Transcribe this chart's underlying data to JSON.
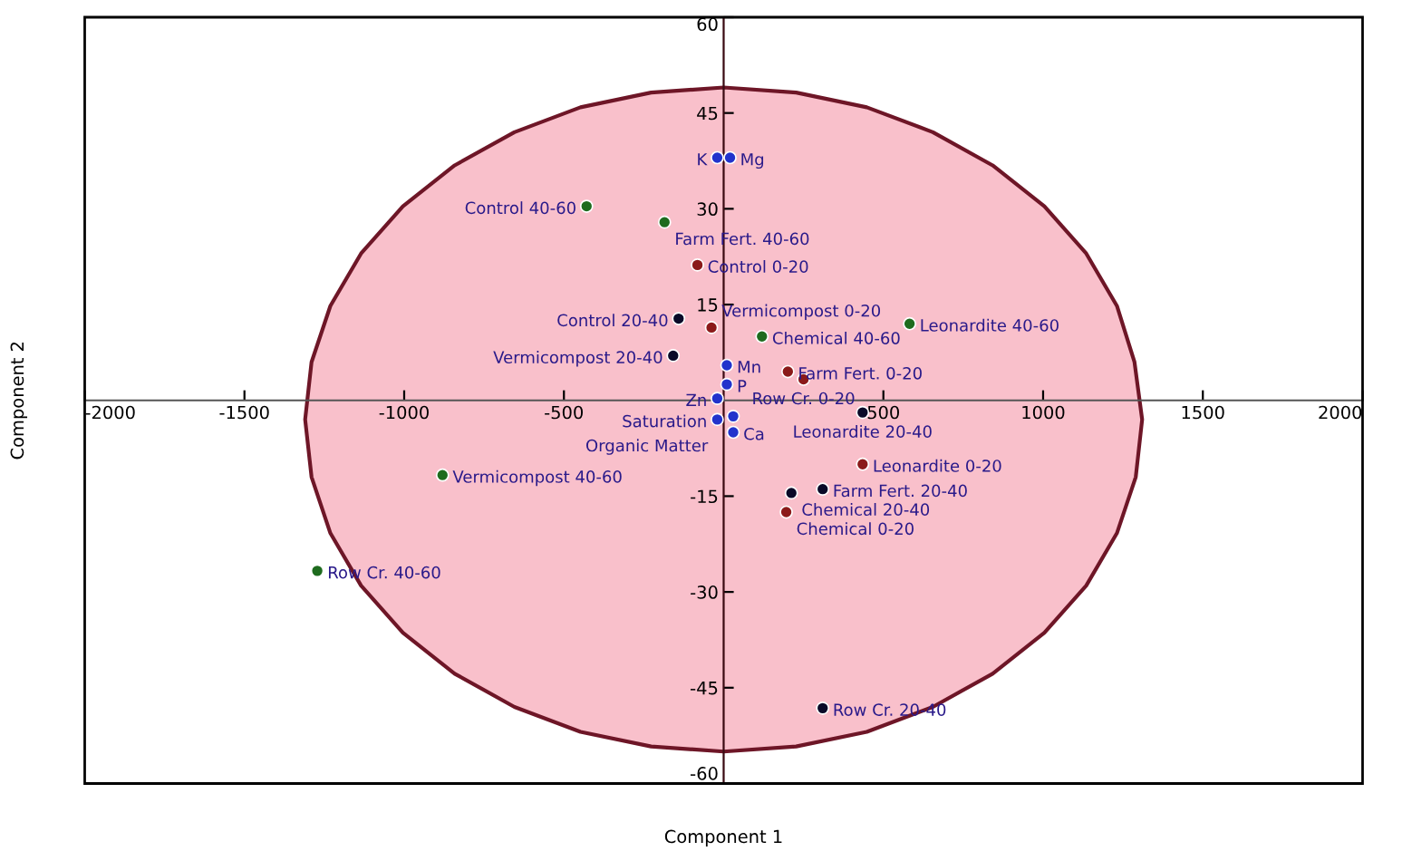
{
  "chart_data": {
    "type": "scatter",
    "xlabel": "Component 1",
    "ylabel": "Component 2",
    "xlim": [
      -2000,
      2000
    ],
    "ylim": [
      -60,
      60
    ],
    "xticks": [
      -2000,
      -1500,
      -1000,
      -500,
      500,
      1000,
      1500,
      2000
    ],
    "yticks": [
      -60,
      -45,
      -30,
      -15,
      15,
      30,
      45,
      60
    ],
    "grid": false,
    "legend": false,
    "series": [
      {
        "type": "area",
        "color": "#f9c0cb",
        "x": [
          1310,
          1286,
          1231,
          1135,
          1004,
          842,
          655,
          448,
          227,
          0,
          -227,
          -448,
          -655,
          -842,
          -1004,
          -1135,
          -1231,
          -1290,
          -1310,
          -1290,
          -1231,
          -1135,
          -1004,
          -842,
          -655,
          -448,
          -227,
          0,
          227,
          448,
          655,
          842,
          1004,
          1135,
          1231,
          1290,
          1310
        ],
        "values": [
          -3,
          6,
          14.8,
          23,
          30.4,
          36.8,
          42,
          45.9,
          48.2,
          49,
          48.2,
          45.9,
          42,
          36.8,
          30.4,
          23,
          14.8,
          6,
          -3,
          -12,
          -20.8,
          -29,
          -36.4,
          -42.8,
          -48,
          -51.9,
          -54.2,
          -55,
          -54.2,
          -51.9,
          -48,
          -42.8,
          -36.4,
          -29,
          -20.8,
          -12,
          -3
        ]
      },
      {
        "marker": "circle",
        "color": "#1e6b1e",
        "x": [
          -429,
          -185,
          120,
          582,
          -880,
          -1272
        ],
        "values": [
          30.4,
          27.9,
          10,
          12,
          -11.7,
          -26.7
        ]
      },
      {
        "marker": "circle",
        "color": "#8b1a1a",
        "x": [
          -82,
          -38,
          201,
          250,
          435,
          196
        ],
        "values": [
          21.2,
          11.4,
          4.5,
          3.3,
          -10,
          -17.5
        ]
      },
      {
        "marker": "circle",
        "color": "#0a0a28",
        "x": [
          -141,
          -158,
          435,
          310,
          212,
          310
        ],
        "values": [
          12.8,
          7,
          -1.9,
          -13.9,
          -14.5,
          -48.2
        ]
      },
      {
        "marker": "circle",
        "color": "#2233cc",
        "x": [
          -20,
          20,
          10,
          10,
          -20,
          -20,
          30,
          30
        ],
        "values": [
          38,
          38,
          5.5,
          2.5,
          0.3,
          -3,
          -2.5,
          -5
        ]
      }
    ],
    "annotations": [
      {
        "text": "Control 40-60",
        "x": -429,
        "y": 30.4
      },
      {
        "text": "Farm Fert. 40-60",
        "x": -185,
        "y": 27.9
      },
      {
        "text": "Control 0-20",
        "x": -82,
        "y": 21.2
      },
      {
        "text": "Control 20-40",
        "x": -141,
        "y": 12.8
      },
      {
        "text": "Vermicompost 0-20",
        "x": -38,
        "y": 11.4
      },
      {
        "text": "Vermicompost 20-40",
        "x": -158,
        "y": 7
      },
      {
        "text": "Chemical 40-60",
        "x": 120,
        "y": 10
      },
      {
        "text": "Leonardite 40-60",
        "x": 582,
        "y": 12
      },
      {
        "text": "Farm Fert. 0-20",
        "x": 201,
        "y": 4.5
      },
      {
        "text": "Row Cr. 0-20",
        "x": 250,
        "y": 3.3
      },
      {
        "text": "Leonardite 20-40",
        "x": 435,
        "y": -1.9
      },
      {
        "text": "Leonardite 0-20",
        "x": 435,
        "y": -10
      },
      {
        "text": "Farm Fert. 20-40",
        "x": 310,
        "y": -13.9
      },
      {
        "text": "Chemical 20-40",
        "x": 212,
        "y": -14.5
      },
      {
        "text": "Chemical 0-20",
        "x": 196,
        "y": -17.5
      },
      {
        "text": "Vermicompost 40-60",
        "x": -880,
        "y": -11.7
      },
      {
        "text": "Row Cr. 40-60",
        "x": -1272,
        "y": -26.7
      },
      {
        "text": "Row Cr. 20-40",
        "x": 310,
        "y": -48.2
      },
      {
        "text": "K",
        "x": -20,
        "y": 38
      },
      {
        "text": "Mg",
        "x": 20,
        "y": 38
      },
      {
        "text": "Mn",
        "x": 10,
        "y": 5.5
      },
      {
        "text": "P",
        "x": 10,
        "y": 2.5
      },
      {
        "text": "Zn",
        "x": -20,
        "y": 0.3
      },
      {
        "text": "Saturation",
        "x": -20,
        "y": -3
      },
      {
        "text": "Organic Matter",
        "x": 30,
        "y": -2.5
      },
      {
        "text": "Ca",
        "x": 30,
        "y": -5
      }
    ]
  }
}
